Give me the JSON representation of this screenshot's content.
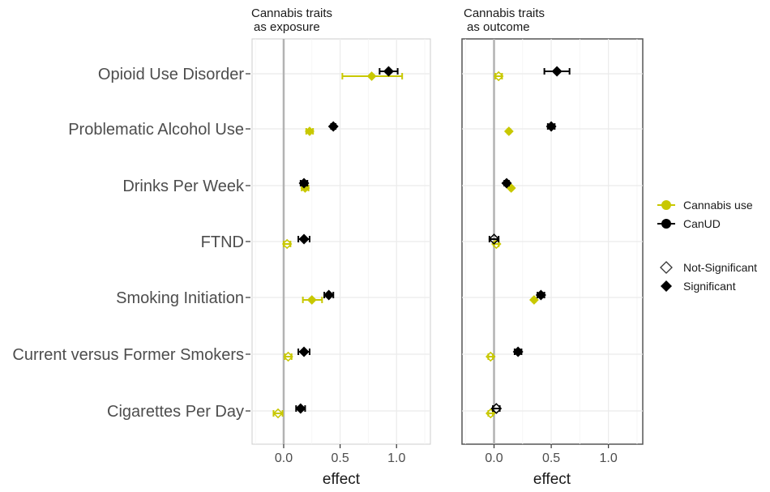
{
  "chart_data": {
    "type": "scatter",
    "subtype": "forest-plot",
    "categories": [
      "Opioid Use Disorder",
      "Problematic Alcohol Use",
      "Drinks Per Week",
      "FTND",
      "Smoking Initiation",
      "Current versus Former Smokers",
      "Cigarettes Per Day"
    ],
    "xlabel": "effect",
    "xlim": [
      -0.28,
      1.3
    ],
    "xticks": [
      0.0,
      0.5,
      1.0
    ],
    "xtick_labels": [
      "0.0",
      "0.5",
      "1.0"
    ],
    "reference_line": 0,
    "grid": true,
    "colors": {
      "Cannabis use": "#c8c800",
      "CanUD": "#000000"
    },
    "panels": [
      {
        "title_line1": "Cannabis traits",
        "title_line2": "as exposure",
        "series": [
          {
            "name": "Cannabis use",
            "points": [
              {
                "category": "Opioid Use Disorder",
                "x": 0.78,
                "lo": 0.52,
                "hi": 1.05,
                "significant": true
              },
              {
                "category": "Problematic Alcohol Use",
                "x": 0.23,
                "lo": 0.2,
                "hi": 0.26,
                "significant": true
              },
              {
                "category": "Drinks Per Week",
                "x": 0.19,
                "lo": 0.16,
                "hi": 0.22,
                "significant": true
              },
              {
                "category": "FTND",
                "x": 0.03,
                "lo": 0.0,
                "hi": 0.06,
                "significant": false
              },
              {
                "category": "Smoking Initiation",
                "x": 0.25,
                "lo": 0.17,
                "hi": 0.34,
                "significant": true
              },
              {
                "category": "Current versus Former Smokers",
                "x": 0.04,
                "lo": 0.01,
                "hi": 0.07,
                "significant": false
              },
              {
                "category": "Cigarettes Per Day",
                "x": -0.05,
                "lo": -0.09,
                "hi": -0.01,
                "significant": false
              }
            ]
          },
          {
            "name": "CanUD",
            "points": [
              {
                "category": "Opioid Use Disorder",
                "x": 0.93,
                "lo": 0.85,
                "hi": 1.01,
                "significant": true
              },
              {
                "category": "Problematic Alcohol Use",
                "x": 0.44,
                "lo": 0.42,
                "hi": 0.46,
                "significant": true
              },
              {
                "category": "Drinks Per Week",
                "x": 0.18,
                "lo": 0.15,
                "hi": 0.21,
                "significant": true
              },
              {
                "category": "FTND",
                "x": 0.18,
                "lo": 0.13,
                "hi": 0.23,
                "significant": true
              },
              {
                "category": "Smoking Initiation",
                "x": 0.4,
                "lo": 0.36,
                "hi": 0.44,
                "significant": true
              },
              {
                "category": "Current versus Former Smokers",
                "x": 0.18,
                "lo": 0.13,
                "hi": 0.23,
                "significant": true
              },
              {
                "category": "Cigarettes Per Day",
                "x": 0.15,
                "lo": 0.11,
                "hi": 0.19,
                "significant": true
              }
            ]
          }
        ]
      },
      {
        "title_line1": "Cannabis traits",
        "title_line2": "as outcome",
        "series": [
          {
            "name": "Cannabis use",
            "points": [
              {
                "category": "Opioid Use Disorder",
                "x": 0.04,
                "lo": 0.01,
                "hi": 0.07,
                "significant": false
              },
              {
                "category": "Problematic Alcohol Use",
                "x": 0.13,
                "lo": 0.12,
                "hi": 0.14,
                "significant": true
              },
              {
                "category": "Drinks Per Week",
                "x": 0.15,
                "lo": 0.14,
                "hi": 0.16,
                "significant": true
              },
              {
                "category": "FTND",
                "x": 0.02,
                "lo": 0.0,
                "hi": 0.04,
                "significant": false
              },
              {
                "category": "Smoking Initiation",
                "x": 0.35,
                "lo": 0.34,
                "hi": 0.36,
                "significant": true
              },
              {
                "category": "Current versus Former Smokers",
                "x": -0.03,
                "lo": -0.05,
                "hi": -0.01,
                "significant": false
              },
              {
                "category": "Cigarettes Per Day",
                "x": -0.03,
                "lo": -0.05,
                "hi": -0.01,
                "significant": false
              }
            ]
          },
          {
            "name": "CanUD",
            "points": [
              {
                "category": "Opioid Use Disorder",
                "x": 0.55,
                "lo": 0.44,
                "hi": 0.66,
                "significant": true
              },
              {
                "category": "Problematic Alcohol Use",
                "x": 0.5,
                "lo": 0.47,
                "hi": 0.53,
                "significant": true
              },
              {
                "category": "Drinks Per Week",
                "x": 0.11,
                "lo": 0.09,
                "hi": 0.13,
                "significant": true
              },
              {
                "category": "FTND",
                "x": 0.0,
                "lo": -0.04,
                "hi": 0.04,
                "significant": false
              },
              {
                "category": "Smoking Initiation",
                "x": 0.41,
                "lo": 0.38,
                "hi": 0.44,
                "significant": true
              },
              {
                "category": "Current versus Former Smokers",
                "x": 0.21,
                "lo": 0.18,
                "hi": 0.24,
                "significant": true
              },
              {
                "category": "Cigarettes Per Day",
                "x": 0.02,
                "lo": -0.01,
                "hi": 0.05,
                "significant": false
              }
            ]
          }
        ]
      }
    ],
    "legend": {
      "placement": "right",
      "color_entries": [
        "Cannabis use",
        "CanUD"
      ],
      "shape_entries": [
        "Not-Significant",
        "Significant"
      ]
    }
  }
}
